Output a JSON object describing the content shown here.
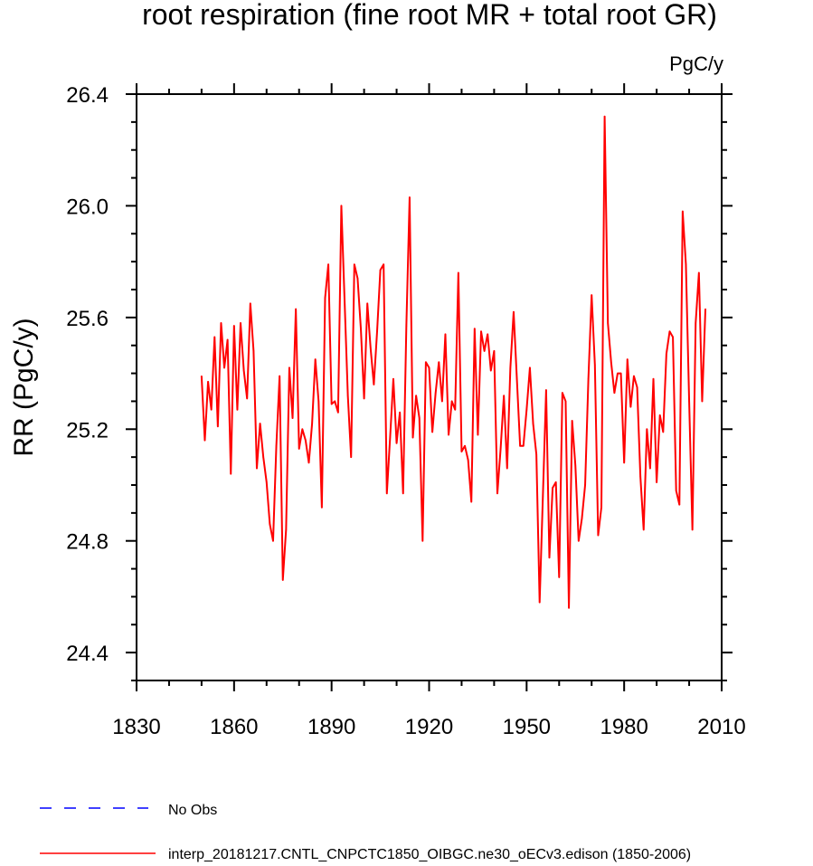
{
  "chart_data": {
    "type": "line",
    "title": "root respiration (fine root MR + total root GR)",
    "units_label": "PgC/y",
    "xlabel": "",
    "ylabel": "RR  (PgC/y)",
    "xlim": [
      1830,
      2010
    ],
    "ylim": [
      24.3,
      26.4
    ],
    "x_ticks": [
      1830,
      1860,
      1890,
      1920,
      1950,
      1980,
      2010
    ],
    "x_tick_labels": [
      "1830",
      "1860",
      "1890",
      "1920",
      "1950",
      "1980",
      "2010"
    ],
    "y_ticks": [
      24.4,
      24.8,
      25.2,
      25.6,
      26.0,
      26.4
    ],
    "y_tick_labels": [
      "24.4",
      "24.8",
      "25.2",
      "25.6",
      "26.0",
      "26.4"
    ],
    "grid": false,
    "legend_placement": "bottom",
    "legend": [
      {
        "label": "No Obs",
        "color": "#0000ff",
        "style": "dashed"
      },
      {
        "label": "interp_20181217.CNTL_CNPCTC1850_OIBGC.ne30_oECv3.edison (1850-2006)",
        "color": "#ff0000",
        "style": "solid"
      }
    ],
    "series": [
      {
        "name": "interp_20181217.CNTL_CNPCTC1850_OIBGC.ne30_oECv3.edison (1850-2006)",
        "color": "#ff0000",
        "x_start": 1850,
        "x_step": 1,
        "values": [
          25.39,
          25.16,
          25.37,
          25.27,
          25.53,
          25.21,
          25.58,
          25.42,
          25.52,
          25.04,
          25.57,
          25.27,
          25.58,
          25.41,
          25.31,
          25.65,
          25.48,
          25.06,
          25.22,
          25.1,
          25.01,
          24.86,
          24.8,
          25.14,
          25.39,
          24.66,
          24.84,
          25.42,
          25.24,
          25.63,
          25.13,
          25.2,
          25.16,
          25.08,
          25.22,
          25.45,
          25.3,
          24.92,
          25.67,
          25.79,
          25.29,
          25.3,
          25.26,
          26.0,
          25.66,
          25.32,
          25.1,
          25.79,
          25.74,
          25.56,
          25.31,
          25.65,
          25.49,
          25.36,
          25.55,
          25.77,
          25.79,
          24.97,
          25.17,
          25.38,
          25.15,
          25.26,
          24.97,
          25.57,
          26.03,
          25.17,
          25.32,
          25.24,
          24.8,
          25.44,
          25.42,
          25.19,
          25.33,
          25.44,
          25.3,
          25.54,
          25.18,
          25.3,
          25.27,
          25.76,
          25.12,
          25.14,
          25.09,
          24.94,
          25.56,
          25.18,
          25.55,
          25.48,
          25.54,
          25.41,
          25.48,
          24.97,
          25.13,
          25.32,
          25.06,
          25.42,
          25.62,
          25.38,
          25.14,
          25.14,
          25.27,
          25.42,
          25.22,
          25.11,
          24.58,
          24.96,
          25.34,
          24.74,
          24.99,
          25.01,
          24.67,
          25.33,
          25.3,
          24.56,
          25.23,
          25.07,
          24.8,
          24.88,
          25.0,
          25.38,
          25.68,
          25.43,
          24.82,
          24.92,
          26.32,
          25.58,
          25.44,
          25.33,
          25.4,
          25.4,
          25.08,
          25.45,
          25.28,
          25.39,
          25.35,
          25.03,
          24.84,
          25.2,
          25.06,
          25.38,
          25.01,
          25.25,
          25.19,
          25.47,
          25.55,
          25.53,
          24.98,
          24.93,
          25.98,
          25.79,
          25.3,
          24.84,
          25.58,
          25.76,
          25.3,
          25.63
        ]
      }
    ]
  }
}
